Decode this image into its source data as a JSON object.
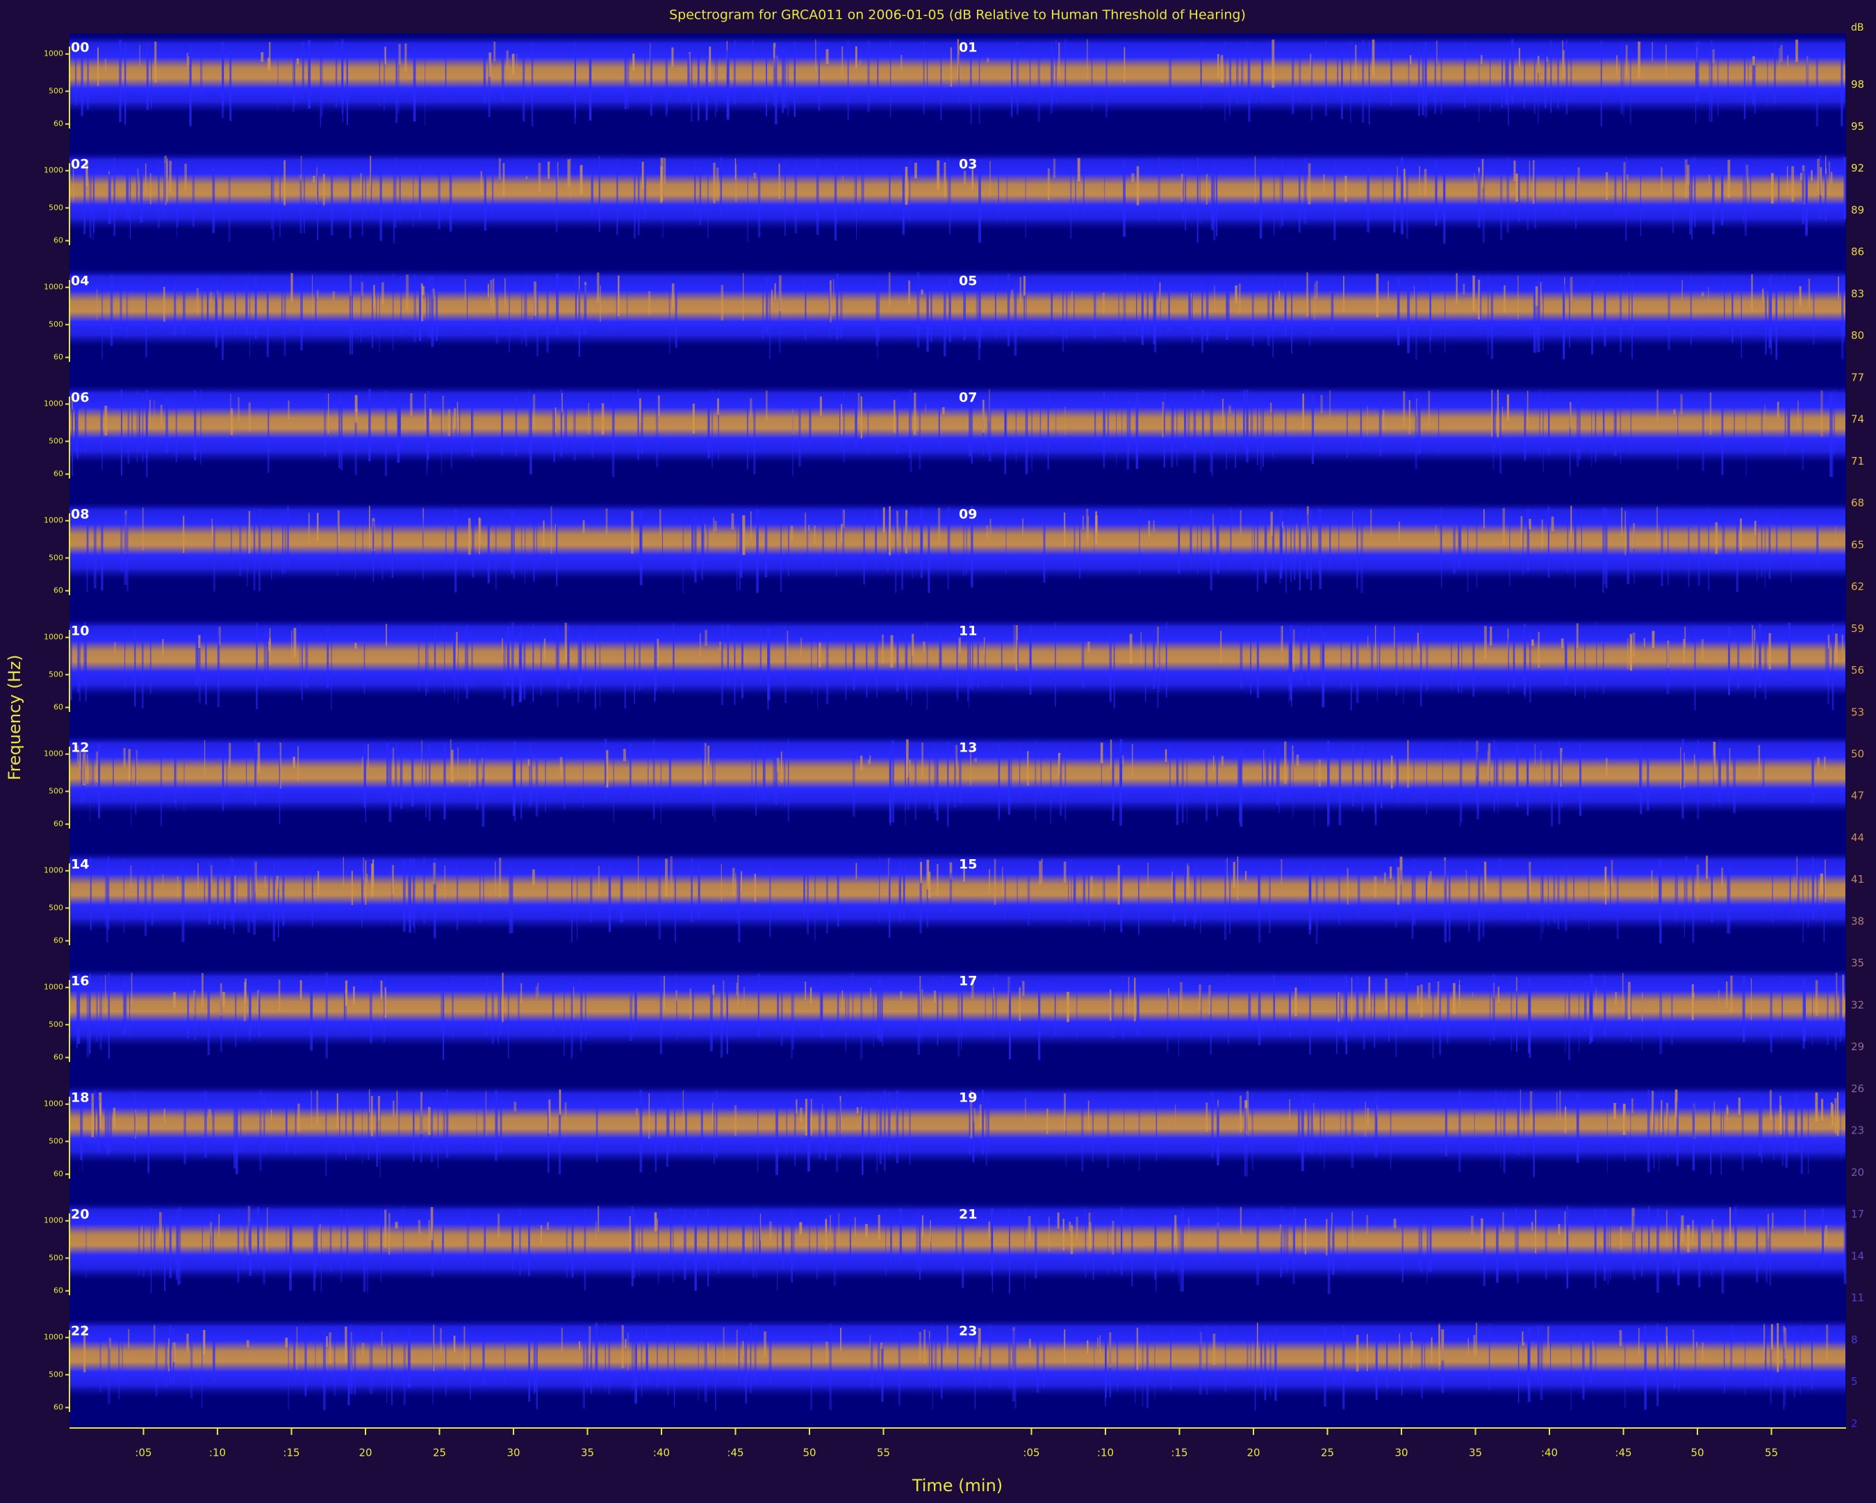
{
  "chart_data": {
    "type": "spectrogram",
    "title": "Spectrogram for GRCA011 on 2006-01-05 (dB Relative to Human Threshold of Hearing)",
    "xlabel": "Time (min)",
    "ylabel": "Frequency (Hz)",
    "panels": [
      "00",
      "01",
      "02",
      "03",
      "04",
      "05",
      "06",
      "07",
      "08",
      "09",
      "10",
      "11",
      "12",
      "13",
      "14",
      "15",
      "16",
      "17",
      "18",
      "19",
      "20",
      "21",
      "22",
      "23"
    ],
    "xlim": [
      0,
      60
    ],
    "xticks": [
      {
        "value": 5,
        "label": ":05"
      },
      {
        "value": 10,
        "label": ":10"
      },
      {
        "value": 15,
        "label": ":15"
      },
      20,
      25,
      30,
      35,
      {
        "value": 40,
        "label": ":40"
      },
      {
        "value": 45,
        "label": ":45"
      },
      50,
      55
    ],
    "ylim": [
      0,
      1100
    ],
    "yticks": [
      60,
      500,
      1000
    ],
    "colorbar_label": "dB",
    "clim": [
      0,
      100
    ],
    "cticks": [
      98,
      95,
      92,
      89,
      86,
      83,
      80,
      77,
      74,
      71,
      68,
      65,
      62,
      59,
      56,
      53,
      50,
      47,
      44,
      41,
      38,
      35,
      32,
      29,
      26,
      23,
      20,
      17,
      14,
      11,
      8,
      5,
      2
    ],
    "colormap": [
      "#00007a",
      "#2a2aff",
      "#d89a48",
      "#f0f040"
    ],
    "axis_color": "#e8e83a",
    "background": "#1c0a3c"
  }
}
